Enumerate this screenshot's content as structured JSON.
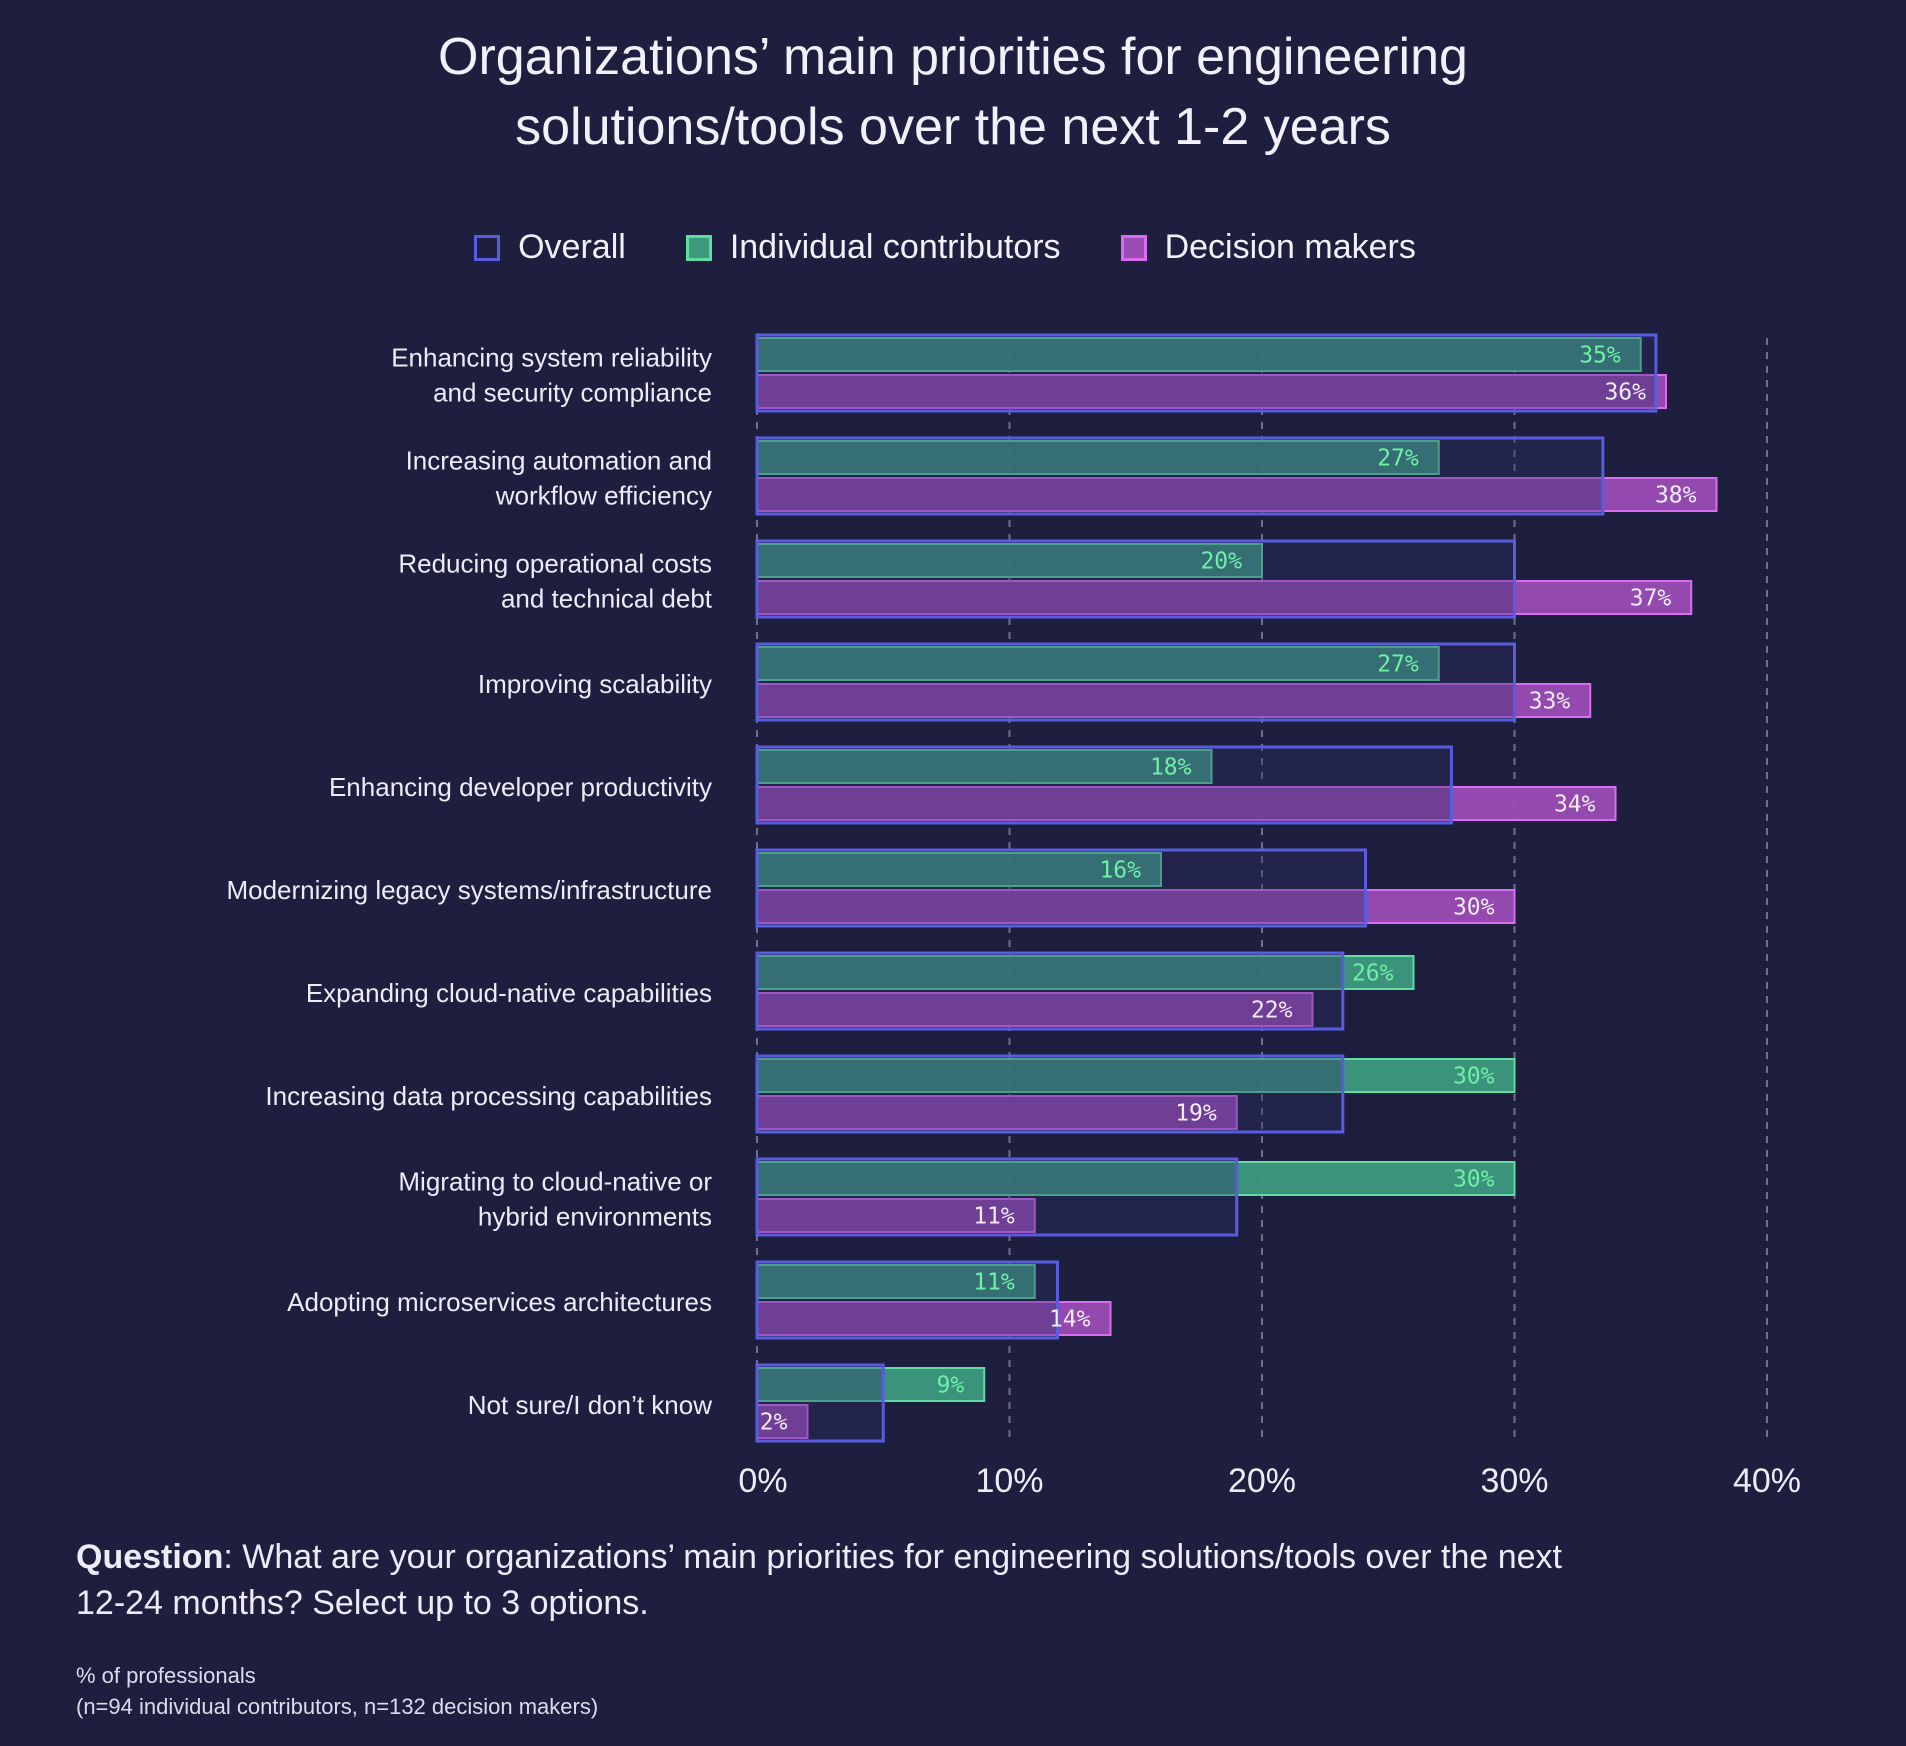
{
  "title": {
    "line1": "Organizations’ main priorities for engineering",
    "line2": "solutions/tools over the next 1-2 years"
  },
  "legend": {
    "overall": "Overall",
    "individual": "Individual contributors",
    "decision": "Decision makers"
  },
  "colors": {
    "background": "#1e1f3e",
    "overall_stroke": "#5a5ce0",
    "overall_fill": "#2b2d66",
    "individual_fill": "#3d9a7f",
    "individual_stroke": "#5fdc9f",
    "individual_label": "#6ff0a7",
    "decision_fill": "#9a4cb4",
    "decision_stroke": "#d96df0",
    "decision_label": "#f3ecfa",
    "grid": "#7d7e99",
    "text": "#ecebf7"
  },
  "chart_data": {
    "type": "bar",
    "orientation": "horizontal",
    "categories": [
      [
        "Enhancing system reliability",
        "and security compliance"
      ],
      [
        "Increasing automation and",
        "workflow efficiency"
      ],
      [
        "Reducing operational costs",
        "and technical debt"
      ],
      [
        "Improving scalability"
      ],
      [
        "Enhancing developer productivity"
      ],
      [
        "Modernizing legacy systems/infrastructure"
      ],
      [
        "Expanding cloud-native capabilities"
      ],
      [
        "Increasing data processing capabilities"
      ],
      [
        "Migrating to cloud-native or",
        "hybrid environments"
      ],
      [
        "Adopting microservices architectures"
      ],
      [
        "Not sure/I don’t know"
      ]
    ],
    "series": [
      {
        "name": "Overall",
        "values": [
          35.6,
          33.5,
          30,
          30,
          27.5,
          24.1,
          23.2,
          23.2,
          19,
          11.9,
          5
        ]
      },
      {
        "name": "Individual contributors",
        "values": [
          35,
          27,
          20,
          27,
          18,
          16,
          26,
          30,
          30,
          11,
          9
        ],
        "labels": [
          "35%",
          "27%",
          "20%",
          "27%",
          "18%",
          "16%",
          "26%",
          "30%",
          "30%",
          "11%",
          "9%"
        ]
      },
      {
        "name": "Decision makers",
        "values": [
          36,
          38,
          37,
          33,
          34,
          30,
          22,
          19,
          11,
          14,
          2
        ],
        "labels": [
          "36%",
          "38%",
          "37%",
          "33%",
          "34%",
          "30%",
          "22%",
          "19%",
          "11%",
          "14%",
          "2%"
        ]
      }
    ],
    "xlim": [
      0,
      40
    ],
    "xticks": [
      0,
      10,
      20,
      30,
      40
    ],
    "xtick_labels": [
      "0%",
      "10%",
      "20%",
      "30%",
      "40%"
    ],
    "grid": "vertical dashed",
    "legend_position": "top-center"
  },
  "question": {
    "label": "Question",
    "text": ": What are your organizations’ main priorities for engineering solutions/tools over the next 12-24 months? Select up to 3 options."
  },
  "footnote": {
    "line1": "% of professionals",
    "line2": "(n=94 individual contributors, n=132 decision makers)"
  }
}
